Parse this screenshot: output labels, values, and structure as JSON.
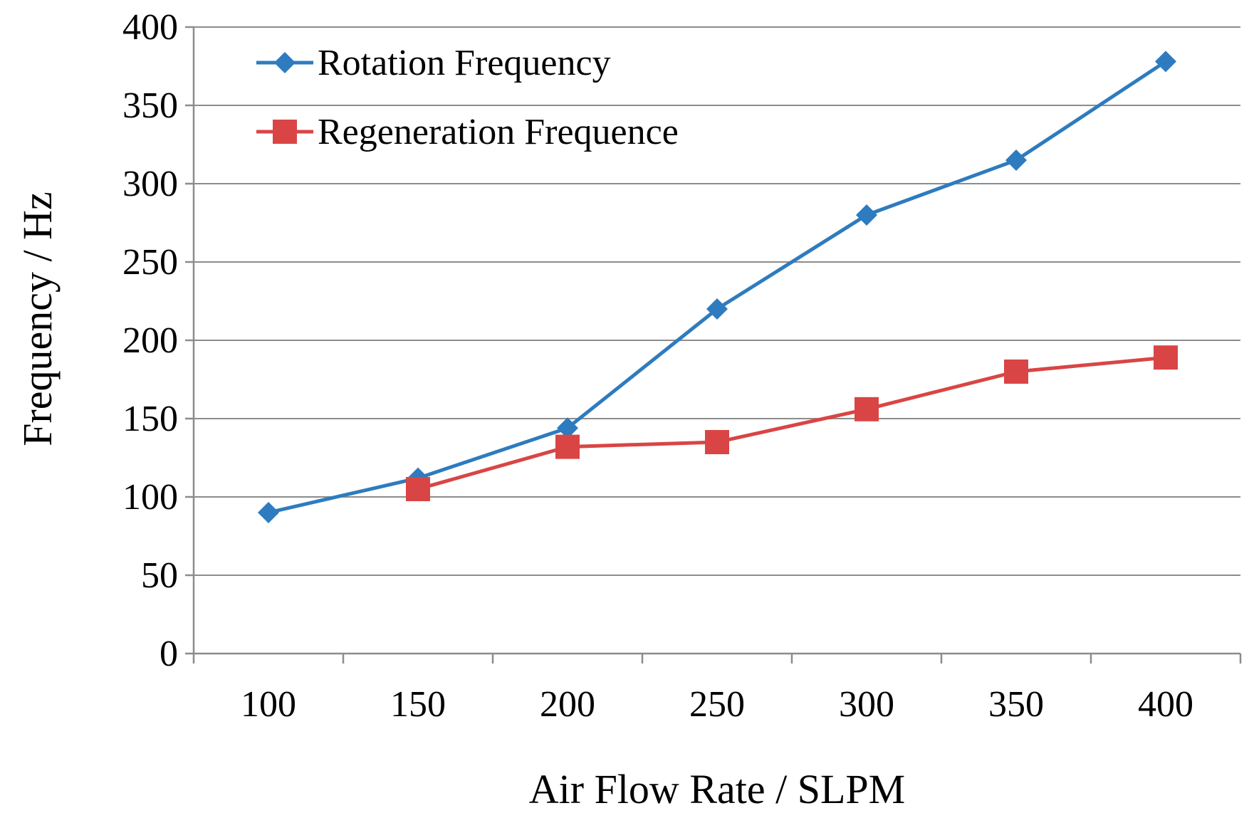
{
  "chart_data": {
    "type": "line",
    "title": "",
    "xlabel": "Air Flow Rate / SLPM",
    "ylabel": "Frequency  / Hz",
    "categories": [
      "100",
      "150",
      "200",
      "250",
      "300",
      "350",
      "400"
    ],
    "ylim": [
      0,
      400
    ],
    "yticks": [
      0,
      50,
      100,
      150,
      200,
      250,
      300,
      350,
      400
    ],
    "grid": true,
    "legend_position": "top-left",
    "series": [
      {
        "name": "Rotation Frequency",
        "color": "#2e7bbf",
        "marker": "diamond",
        "values": [
          90,
          112,
          144,
          220,
          280,
          315,
          378
        ]
      },
      {
        "name": "Regeneration Frequence",
        "color": "#d94545",
        "marker": "square",
        "values": [
          null,
          105,
          132,
          135,
          156,
          180,
          189
        ]
      }
    ]
  }
}
